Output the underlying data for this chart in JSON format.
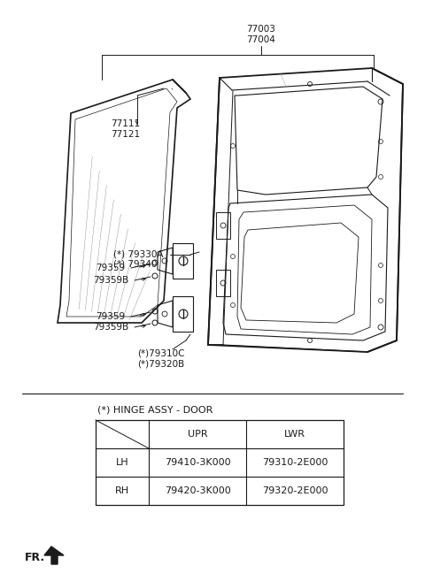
{
  "bg_color": "#ffffff",
  "line_color": "#1a1a1a",
  "text_color": "#1a1a1a",
  "label_color": "#1a1a1a",
  "hinge_title": "(*) HINGE ASSY - DOOR",
  "table_headers": [
    "",
    "UPR",
    "LWR"
  ],
  "table_rows": [
    [
      "LH",
      "79410-3K000",
      "79310-2E000"
    ],
    [
      "RH",
      "79420-3K000",
      "79320-2E000"
    ]
  ],
  "fr_label": "FR.",
  "label_77003": "77003\n77004",
  "label_77111": "77111\n77121",
  "label_79330A": "(*) 79330A\n(*) 79340",
  "label_79359_u": "79359",
  "label_79359B_u": "79359B",
  "label_79359_l": "79359",
  "label_79359B_l": "79359B",
  "label_79310C": "(*)79310C\n(*)79320B"
}
